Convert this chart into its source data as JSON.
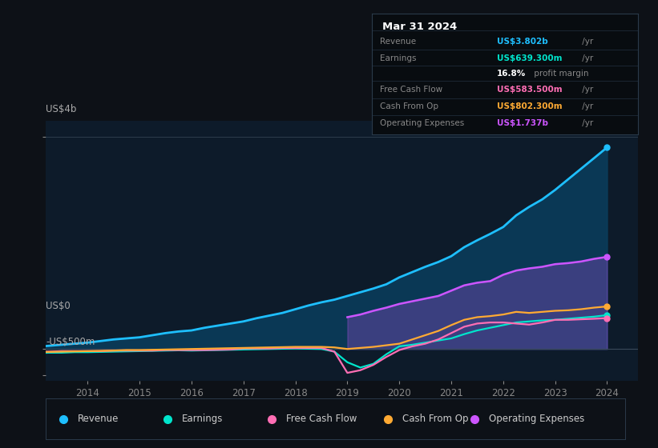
{
  "bg_color": "#0d1117",
  "plot_bg_color": "#0d1b2a",
  "bg_color_dark": "#111827",
  "years": [
    2013.0,
    2013.25,
    2013.5,
    2013.75,
    2014.0,
    2014.25,
    2014.5,
    2014.75,
    2015.0,
    2015.25,
    2015.5,
    2015.75,
    2016.0,
    2016.25,
    2016.5,
    2016.75,
    2017.0,
    2017.25,
    2017.5,
    2017.75,
    2018.0,
    2018.25,
    2018.5,
    2018.75,
    2019.0,
    2019.25,
    2019.5,
    2019.75,
    2020.0,
    2020.25,
    2020.5,
    2020.75,
    2021.0,
    2021.25,
    2021.5,
    2021.75,
    2022.0,
    2022.25,
    2022.5,
    2022.75,
    2023.0,
    2023.25,
    2023.5,
    2023.75,
    2024.0
  ],
  "revenue": [
    0.04,
    0.06,
    0.08,
    0.1,
    0.12,
    0.15,
    0.18,
    0.2,
    0.22,
    0.26,
    0.3,
    0.33,
    0.35,
    0.4,
    0.44,
    0.48,
    0.52,
    0.58,
    0.63,
    0.68,
    0.75,
    0.82,
    0.88,
    0.93,
    1.0,
    1.07,
    1.14,
    1.22,
    1.35,
    1.45,
    1.55,
    1.64,
    1.75,
    1.92,
    2.05,
    2.17,
    2.3,
    2.52,
    2.68,
    2.82,
    3.0,
    3.2,
    3.4,
    3.6,
    3.802
  ],
  "earnings": [
    -0.08,
    -0.07,
    -0.07,
    -0.06,
    -0.06,
    -0.055,
    -0.05,
    -0.045,
    -0.04,
    -0.035,
    -0.03,
    -0.025,
    -0.03,
    -0.025,
    -0.02,
    -0.015,
    -0.01,
    -0.005,
    0.0,
    0.005,
    0.01,
    0.005,
    0.0,
    -0.05,
    -0.25,
    -0.35,
    -0.28,
    -0.1,
    0.05,
    0.08,
    0.12,
    0.16,
    0.2,
    0.28,
    0.35,
    0.4,
    0.45,
    0.5,
    0.52,
    0.54,
    0.55,
    0.57,
    0.59,
    0.61,
    0.639
  ],
  "free_cash_flow": [
    -0.05,
    -0.05,
    -0.04,
    -0.04,
    -0.04,
    -0.04,
    -0.03,
    -0.03,
    -0.03,
    -0.03,
    -0.02,
    -0.02,
    -0.02,
    -0.02,
    -0.015,
    -0.01,
    0.01,
    0.01,
    0.01,
    0.02,
    0.02,
    0.02,
    0.02,
    -0.05,
    -0.45,
    -0.4,
    -0.3,
    -0.15,
    -0.02,
    0.05,
    0.1,
    0.18,
    0.3,
    0.42,
    0.48,
    0.5,
    0.5,
    0.48,
    0.46,
    0.5,
    0.55,
    0.55,
    0.56,
    0.57,
    0.583
  ],
  "cash_from_op": [
    -0.06,
    -0.055,
    -0.05,
    -0.045,
    -0.04,
    -0.035,
    -0.03,
    -0.02,
    -0.02,
    -0.015,
    -0.01,
    -0.005,
    0.0,
    0.005,
    0.01,
    0.015,
    0.02,
    0.025,
    0.03,
    0.035,
    0.04,
    0.04,
    0.04,
    0.03,
    0.0,
    0.02,
    0.04,
    0.07,
    0.1,
    0.18,
    0.26,
    0.34,
    0.45,
    0.55,
    0.6,
    0.62,
    0.65,
    0.7,
    0.68,
    0.7,
    0.72,
    0.73,
    0.75,
    0.78,
    0.802
  ],
  "op_expenses": [
    0.0,
    0.0,
    0.0,
    0.0,
    0.0,
    0.0,
    0.0,
    0.0,
    0.0,
    0.0,
    0.0,
    0.0,
    0.0,
    0.0,
    0.0,
    0.0,
    0.0,
    0.0,
    0.0,
    0.0,
    0.0,
    0.0,
    0.0,
    0.0,
    0.6,
    0.65,
    0.72,
    0.78,
    0.85,
    0.9,
    0.95,
    1.0,
    1.1,
    1.2,
    1.25,
    1.28,
    1.4,
    1.48,
    1.52,
    1.55,
    1.6,
    1.62,
    1.65,
    1.7,
    1.737
  ],
  "revenue_color": "#1ebfff",
  "earnings_color": "#00e5cc",
  "fcf_color": "#ff6eb4",
  "cashop_color": "#ffaa33",
  "opex_color": "#cc55ff",
  "ylim": [
    -0.6,
    4.3
  ],
  "y_ticks": [
    -0.5,
    0.0,
    4.0
  ],
  "y_labels": [
    "-US$500m",
    "US$0",
    "US$4b"
  ],
  "x_ticks": [
    2014,
    2015,
    2016,
    2017,
    2018,
    2019,
    2020,
    2021,
    2022,
    2023,
    2024
  ],
  "legend_labels": [
    "Revenue",
    "Earnings",
    "Free Cash Flow",
    "Cash From Op",
    "Operating Expenses"
  ],
  "legend_colors": [
    "#1ebfff",
    "#00e5cc",
    "#ff6eb4",
    "#ffaa33",
    "#cc55ff"
  ],
  "tooltip_title": "Mar 31 2024",
  "tooltip_rows": [
    {
      "label": "Revenue",
      "value": "US$3.802b",
      "suffix": " /yr",
      "color": "#1ebfff"
    },
    {
      "label": "Earnings",
      "value": "US$639.300m",
      "suffix": " /yr",
      "color": "#00e5cc"
    },
    {
      "label": "",
      "value": "16.8%",
      "suffix": " profit margin",
      "color": "white"
    },
    {
      "label": "Free Cash Flow",
      "value": "US$583.500m",
      "suffix": " /yr",
      "color": "#ff6eb4"
    },
    {
      "label": "Cash From Op",
      "value": "US$802.300m",
      "suffix": " /yr",
      "color": "#ffaa33"
    },
    {
      "label": "Operating Expenses",
      "value": "US$1.737b",
      "suffix": " /yr",
      "color": "#cc55ff"
    }
  ]
}
